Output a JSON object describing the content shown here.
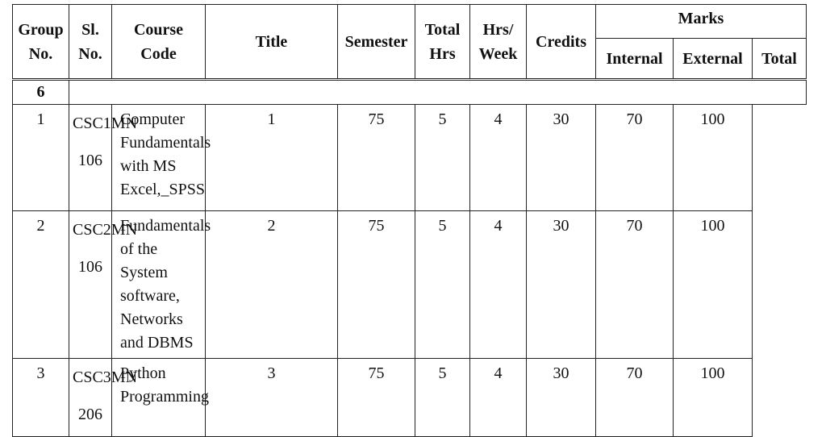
{
  "table": {
    "header": [
      "Group No.",
      "Sl. No.",
      "Course Code",
      "Title",
      "Semester",
      "Total Hrs",
      "Hrs/ Week",
      "Credits",
      "Marks"
    ],
    "marks_header": [
      "Internal",
      "External",
      "Total"
    ],
    "group": "6",
    "rows": [
      [
        "1",
        "CSC1MN 106",
        "Computer Fundamentals with MS Excel,_SPSS",
        "1",
        "75",
        "5",
        "4",
        "30",
        "70",
        "100"
      ],
      [
        "2",
        "CSC2MN 106",
        "Fundamentals of the System software, Networks and DBMS",
        "2",
        "75",
        "5",
        "4",
        "30",
        "70",
        "100"
      ],
      [
        "3",
        "CSC3MN 206",
        "Python Programming",
        "3",
        "75",
        "5",
        "4",
        "30",
        "70",
        "100"
      ]
    ]
  }
}
